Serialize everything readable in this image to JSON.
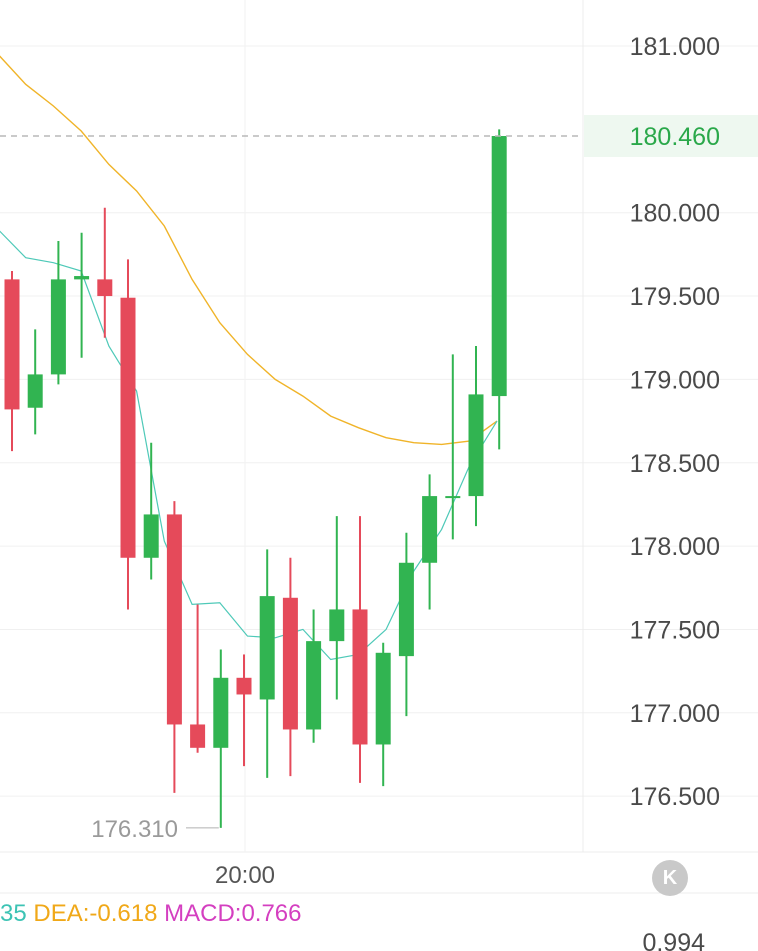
{
  "chart_data": {
    "type": "candlestick",
    "y_ticks": [
      "181.000",
      "180.000",
      "179.500",
      "179.000",
      "178.500",
      "178.000",
      "177.500",
      "177.000",
      "176.500"
    ],
    "y_tick_values": [
      181.0,
      180.0,
      179.5,
      179.0,
      178.5,
      178.0,
      177.5,
      177.0,
      176.5
    ],
    "ylim": [
      176.1,
      181.25
    ],
    "current_price": 180.46,
    "current_price_label": "180.460",
    "x_tick_label": "20:00",
    "x_tick_index": 10,
    "low_marker": {
      "index": 9,
      "value": 176.31,
      "label": "176.310"
    },
    "candles": [
      {
        "o": 179.6,
        "h": 179.65,
        "l": 178.57,
        "c": 178.82
      },
      {
        "o": 178.83,
        "h": 179.3,
        "l": 178.67,
        "c": 179.03
      },
      {
        "o": 179.03,
        "h": 179.83,
        "l": 178.97,
        "c": 179.6
      },
      {
        "o": 179.6,
        "h": 179.88,
        "l": 179.13,
        "c": 179.62
      },
      {
        "o": 179.6,
        "h": 180.03,
        "l": 179.25,
        "c": 179.5
      },
      {
        "o": 179.49,
        "h": 179.72,
        "l": 177.62,
        "c": 177.93
      },
      {
        "o": 177.93,
        "h": 178.62,
        "l": 177.8,
        "c": 178.19
      },
      {
        "o": 178.19,
        "h": 178.27,
        "l": 176.52,
        "c": 176.93
      },
      {
        "o": 176.93,
        "h": 177.65,
        "l": 176.76,
        "c": 176.79
      },
      {
        "o": 176.79,
        "h": 177.38,
        "l": 176.31,
        "c": 177.21
      },
      {
        "o": 177.21,
        "h": 177.35,
        "l": 176.68,
        "c": 177.11
      },
      {
        "o": 177.08,
        "h": 177.98,
        "l": 176.61,
        "c": 177.7
      },
      {
        "o": 177.69,
        "h": 177.93,
        "l": 176.62,
        "c": 176.9
      },
      {
        "o": 176.9,
        "h": 177.62,
        "l": 176.82,
        "c": 177.43
      },
      {
        "o": 177.43,
        "h": 178.18,
        "l": 177.08,
        "c": 177.62
      },
      {
        "o": 177.62,
        "h": 178.18,
        "l": 176.58,
        "c": 176.81
      },
      {
        "o": 176.81,
        "h": 177.42,
        "l": 176.56,
        "c": 177.36
      },
      {
        "o": 177.34,
        "h": 178.08,
        "l": 176.98,
        "c": 177.9
      },
      {
        "o": 177.9,
        "h": 178.43,
        "l": 177.62,
        "c": 178.3
      },
      {
        "o": 178.29,
        "h": 179.15,
        "l": 178.04,
        "c": 178.3
      },
      {
        "o": 178.3,
        "h": 179.2,
        "l": 178.12,
        "c": 178.91
      },
      {
        "o": 178.9,
        "h": 180.5,
        "l": 178.58,
        "c": 180.46
      }
    ],
    "ma_fast": {
      "color": "#4ec9b8",
      "values": [
        179.9,
        179.73,
        179.7,
        179.65,
        179.2,
        178.93,
        178.03,
        177.65,
        177.66,
        177.46,
        177.45,
        177.5,
        177.32,
        177.35,
        177.5,
        177.85,
        178.1,
        178.48,
        178.75
      ]
    },
    "ma_slow": {
      "color": "#f0b429",
      "values": [
        180.95,
        180.77,
        180.64,
        180.49,
        180.29,
        180.13,
        179.92,
        179.6,
        179.34,
        179.15,
        179.0,
        178.9,
        178.78,
        178.71,
        178.65,
        178.62,
        178.61,
        178.63,
        178.75
      ]
    },
    "indicators": [
      {
        "key": "dif",
        "text": "35",
        "color": "#3cc3b4"
      },
      {
        "key": "dea",
        "text": "DEA:-0.618",
        "color": "#f0a818"
      },
      {
        "key": "macd",
        "text": "MACD:0.766",
        "color": "#d43fc0"
      }
    ],
    "sub_axis_tick": "0.994",
    "colors": {
      "up": "#31b451",
      "down": "#e54a5a",
      "current": "#2aa84a",
      "current_bg": "#eef8f0"
    }
  },
  "ui": {
    "k_button": "K"
  }
}
